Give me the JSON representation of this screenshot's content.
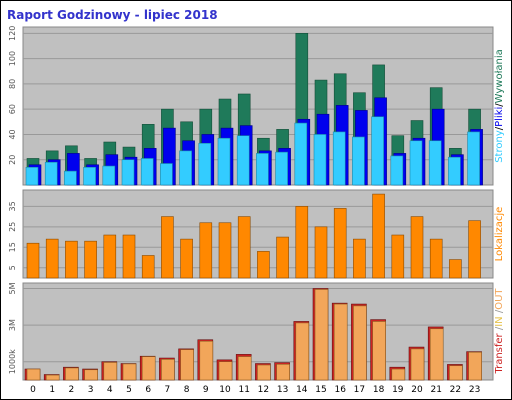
{
  "title": "Raport Godzinowy -  lipiec 2018",
  "colors": {
    "panel_bg": "#c0c0c0",
    "wyw": "#1f7a5a",
    "pliki": "#0000ee",
    "strony": "#33ccff",
    "lok": "#ff8800",
    "in": "#cc2222",
    "out": "#f2a65a",
    "sep": "#999999"
  },
  "chart_data": [
    {
      "type": "bar",
      "title": "Strony/Pliki/Wywołania",
      "categories": [
        "0",
        "1",
        "2",
        "3",
        "4",
        "5",
        "6",
        "7",
        "8",
        "9",
        "10",
        "11",
        "12",
        "13",
        "14",
        "15",
        "16",
        "17",
        "18",
        "19",
        "20",
        "21",
        "22",
        "23"
      ],
      "series": [
        {
          "name": "Wywołania",
          "values": [
            21,
            27,
            31,
            21,
            34,
            30,
            48,
            60,
            50,
            60,
            68,
            72,
            37,
            44,
            120,
            83,
            88,
            73,
            95,
            39,
            51,
            77,
            29,
            60
          ]
        },
        {
          "name": "Pliki",
          "values": [
            16,
            20,
            25,
            16,
            24,
            22,
            29,
            45,
            35,
            40,
            45,
            47,
            27,
            29,
            52,
            56,
            63,
            59,
            69,
            25,
            37,
            60,
            24,
            44
          ]
        },
        {
          "name": "Strony",
          "values": [
            14,
            18,
            11,
            14,
            15,
            20,
            21,
            17,
            27,
            33,
            37,
            39,
            25,
            26,
            49,
            40,
            42,
            38,
            54,
            23,
            35,
            35,
            22,
            42
          ]
        }
      ],
      "ylim": [
        0,
        125
      ],
      "yticks": [
        "20",
        "40",
        "60",
        "80",
        "100",
        "120"
      ],
      "legend": [
        "Strony",
        "/",
        "Pliki",
        "/",
        "Wywołania"
      ]
    },
    {
      "type": "bar",
      "title": "Lokalizacje",
      "categories": [
        "0",
        "1",
        "2",
        "3",
        "4",
        "5",
        "6",
        "7",
        "8",
        "9",
        "10",
        "11",
        "12",
        "13",
        "14",
        "15",
        "16",
        "17",
        "18",
        "19",
        "20",
        "21",
        "22",
        "23"
      ],
      "series": [
        {
          "name": "Lokalizacje",
          "values": [
            17,
            19,
            18,
            18,
            21,
            21,
            11,
            30,
            19,
            27,
            27,
            30,
            13,
            20,
            35,
            25,
            34,
            19,
            41,
            21,
            30,
            19,
            9,
            28
          ]
        }
      ],
      "ylim": [
        0,
        43
      ],
      "yticks": [
        "5",
        "15",
        "25",
        "35"
      ],
      "legend": [
        "Lokalizacje"
      ]
    },
    {
      "type": "bar",
      "title": "Transfer /IN /OUT",
      "categories": [
        "0",
        "1",
        "2",
        "3",
        "4",
        "5",
        "6",
        "7",
        "8",
        "9",
        "10",
        "11",
        "12",
        "13",
        "14",
        "15",
        "16",
        "17",
        "18",
        "19",
        "20",
        "21",
        "22",
        "23"
      ],
      "series": [
        {
          "name": "IN",
          "values": [
            600,
            300,
            700,
            600,
            1000,
            900,
            1300,
            1200,
            1700,
            2200,
            1100,
            1400,
            900,
            950,
            3200,
            5000,
            4200,
            4150,
            3300,
            700,
            1800,
            2900,
            850,
            1550
          ]
        },
        {
          "name": "OUT",
          "values": [
            600,
            270,
            660,
            560,
            960,
            880,
            1280,
            1130,
            1660,
            2120,
            1000,
            1280,
            820,
            860,
            3120,
            4950,
            4150,
            4050,
            3200,
            600,
            1700,
            2800,
            780,
            1520
          ]
        }
      ],
      "ylim": [
        0,
        5300
      ],
      "yticks": [
        "1000k",
        "3M",
        "5M"
      ],
      "legend": [
        "Transfer",
        " /",
        "IN",
        " /",
        "OUT"
      ]
    }
  ],
  "xaxis_labels": [
    "0",
    "1",
    "2",
    "3",
    "4",
    "5",
    "6",
    "7",
    "8",
    "9",
    "10",
    "11",
    "12",
    "13",
    "14",
    "15",
    "16",
    "17",
    "18",
    "19",
    "20",
    "21",
    "22",
    "23"
  ]
}
